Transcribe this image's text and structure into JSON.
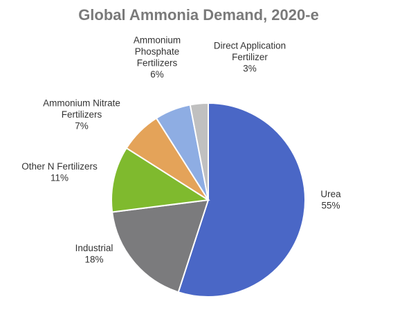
{
  "chart_data": {
    "type": "pie",
    "title": "Global Ammonia Demand, 2020-e",
    "start_angle_deg": 0,
    "direction": "clockwise",
    "slices": [
      {
        "label_lines": [
          "Urea",
          "55%"
        ],
        "value": 55,
        "color": "#4a67c6"
      },
      {
        "label_lines": [
          "Industrial",
          "18%"
        ],
        "value": 18,
        "color": "#7b7b7d"
      },
      {
        "label_lines": [
          "Other N Fertilizers",
          "11%"
        ],
        "value": 11,
        "color": "#7fba2e"
      },
      {
        "label_lines": [
          "Ammonium Nitrate",
          "Fertilizers",
          "7%"
        ],
        "value": 7,
        "color": "#e4a359"
      },
      {
        "label_lines": [
          "Ammonium",
          "Phosphate",
          "Fertilizers",
          "6%"
        ],
        "value": 6,
        "color": "#8eade3"
      },
      {
        "label_lines": [
          "Direct Application",
          "Fertilizer",
          "3%"
        ],
        "value": 3,
        "color": "#c0c0c0"
      }
    ]
  }
}
